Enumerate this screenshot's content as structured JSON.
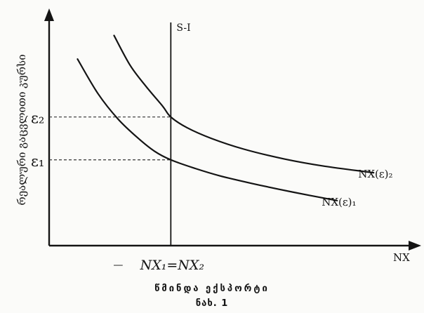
{
  "chart_data": {
    "type": "line",
    "title": "",
    "xlabel": "NX",
    "ylabel": "რეალური გაცვლითი კურსი",
    "y_ticks": [
      {
        "label": "ε₂",
        "value": 2
      },
      {
        "label": "ε₁",
        "value": 1
      }
    ],
    "x_tick_label": "NX₁=NX₂",
    "x_tick_value": 0,
    "xlim": [
      -3,
      6
    ],
    "ylim": [
      -1,
      4.4
    ],
    "vertical_line": {
      "label": "S-I",
      "x": 0
    },
    "series": [
      {
        "name": "NX(ε)₁",
        "x": [
          -2.3,
          -1.8,
          -1.3,
          -0.8,
          -0.4,
          0,
          0.6,
          1.2,
          2.0,
          3.0,
          4.1
        ],
        "y": [
          3.35,
          2.55,
          1.95,
          1.5,
          1.2,
          1.0,
          0.8,
          0.63,
          0.45,
          0.25,
          0.05
        ]
      },
      {
        "name": "NX(ε)₂",
        "x": [
          -1.4,
          -1.0,
          -0.6,
          -0.2,
          0,
          0.4,
          1.0,
          1.8,
          2.8,
          3.8,
          5.0
        ],
        "y": [
          3.9,
          3.2,
          2.7,
          2.25,
          2.0,
          1.75,
          1.5,
          1.25,
          1.02,
          0.85,
          0.7
        ]
      }
    ],
    "grid": false
  },
  "caption": {
    "title": "წმინდა ექსპორტი",
    "figure": "ნახ. 1"
  }
}
